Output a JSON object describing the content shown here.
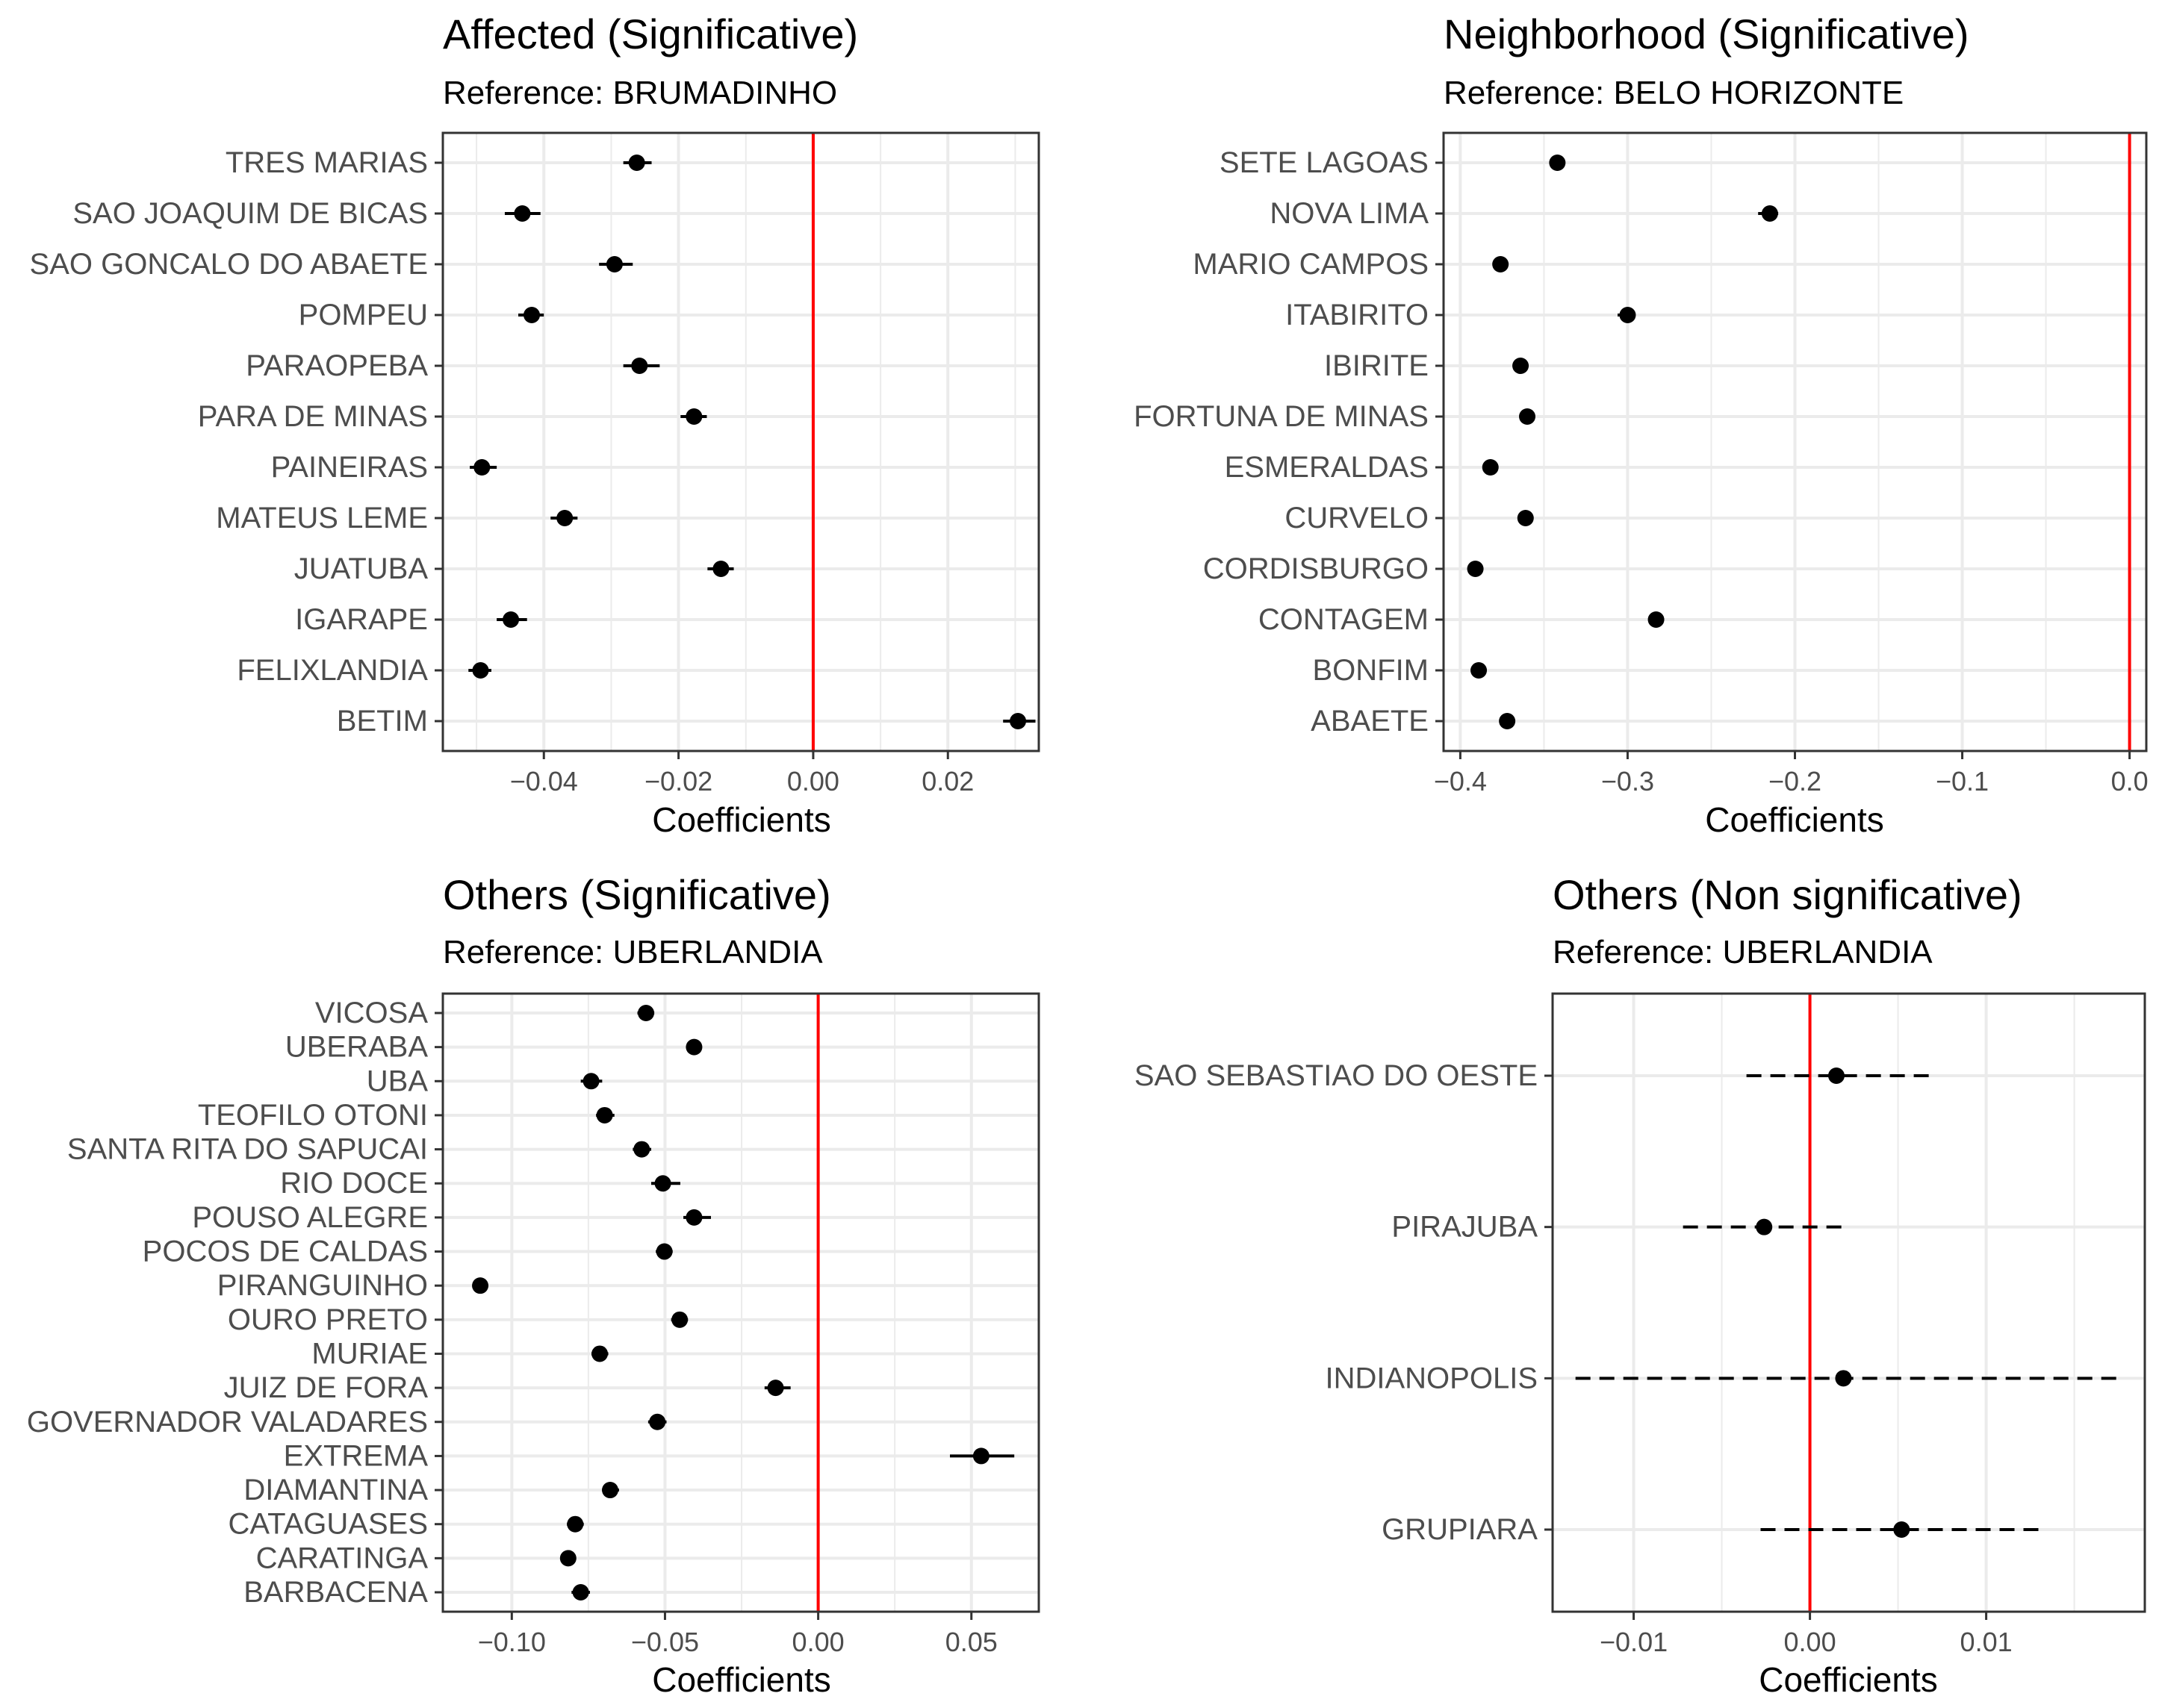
{
  "chart_data": [
    {
      "type": "dot-errorbar",
      "title": "Affected (Significative)",
      "subtitle": "Reference: BRUMADINHO",
      "xlabel": "Coefficients",
      "ylabel": "",
      "xlim": [
        -0.055,
        0.0335
      ],
      "xticks": [
        -0.04,
        -0.02,
        0.0,
        0.02
      ],
      "xtick_labels": [
        "−0.04",
        "−0.02",
        "0.00",
        "0.02"
      ],
      "reference_line": 0,
      "grid": true,
      "errorbar_style": "solid",
      "categories": [
        "TRES MARIAS",
        "SAO JOAQUIM DE BICAS",
        "SAO GONCALO DO ABAETE",
        "POMPEU",
        "PARAOPEBA",
        "PARA DE MINAS",
        "PAINEIRAS",
        "MATEUS LEME",
        "JUATUBA",
        "IGARAPE",
        "FELIXLANDIA",
        "BETIM"
      ],
      "values": [
        -0.0262,
        -0.0432,
        -0.0295,
        -0.0418,
        -0.0258,
        -0.0177,
        -0.0492,
        -0.0369,
        -0.0137,
        -0.0449,
        -0.0494,
        0.0304
      ],
      "lower": [
        -0.0282,
        -0.0458,
        -0.0318,
        -0.0438,
        -0.0282,
        -0.0197,
        -0.051,
        -0.039,
        -0.0157,
        -0.047,
        -0.0512,
        0.0282
      ],
      "upper": [
        -0.024,
        -0.0405,
        -0.0268,
        -0.04,
        -0.0228,
        -0.0158,
        -0.047,
        -0.035,
        -0.0118,
        -0.0425,
        -0.0478,
        0.033
      ]
    },
    {
      "type": "dot-errorbar",
      "title": "Neighborhood (Significative)",
      "subtitle": "Reference: BELO HORIZONTE",
      "xlabel": "Coefficients",
      "ylabel": "",
      "xlim": [
        -0.41,
        0.01
      ],
      "xticks": [
        -0.4,
        -0.3,
        -0.2,
        -0.1,
        0.0
      ],
      "xtick_labels": [
        "−0.4",
        "−0.3",
        "−0.2",
        "−0.1",
        "0.0"
      ],
      "reference_line": 0,
      "grid": true,
      "errorbar_style": "solid",
      "categories": [
        "SETE LAGOAS",
        "NOVA LIMA",
        "MARIO CAMPOS",
        "ITABIRITO",
        "IBIRITE",
        "FORTUNA DE MINAS",
        "ESMERALDAS",
        "CURVELO",
        "CORDISBURGO",
        "CONTAGEM",
        "BONFIM",
        "ABAETE"
      ],
      "values": [
        -0.342,
        -0.215,
        -0.376,
        -0.3,
        -0.364,
        -0.36,
        -0.382,
        -0.361,
        -0.391,
        -0.283,
        -0.389,
        -0.372
      ],
      "lower": [
        -0.346,
        -0.222,
        -0.38,
        -0.306,
        -0.368,
        -0.364,
        -0.386,
        -0.365,
        -0.395,
        -0.287,
        -0.393,
        -0.376
      ],
      "upper": [
        -0.338,
        -0.21,
        -0.372,
        -0.296,
        -0.36,
        -0.356,
        -0.378,
        -0.357,
        -0.387,
        -0.279,
        -0.385,
        -0.368
      ]
    },
    {
      "type": "dot-errorbar",
      "title": "Others (Significative)",
      "subtitle": "Reference: UBERLANDIA",
      "xlabel": "Coefficients",
      "ylabel": "",
      "xlim": [
        -0.1225,
        0.072
      ],
      "xticks": [
        -0.1,
        -0.05,
        0.0,
        0.05
      ],
      "xtick_labels": [
        "−0.10",
        "−0.05",
        "0.00",
        "0.05"
      ],
      "reference_line": 0,
      "grid": true,
      "errorbar_style": "solid",
      "categories": [
        "VICOSA",
        "UBERABA",
        "UBA",
        "TEOFILO OTONI",
        "SANTA RITA DO SAPUCAI",
        "RIO DOCE",
        "POUSO ALEGRE",
        "POCOS DE CALDAS",
        "PIRANGUINHO",
        "OURO PRETO",
        "MURIAE",
        "JUIZ DE FORA",
        "GOVERNADOR VALADARES",
        "EXTREMA",
        "DIAMANTINA",
        "CATAGUASES",
        "CARATINGA",
        "BARBACENA"
      ],
      "values": [
        -0.0562,
        -0.0405,
        -0.0741,
        -0.0697,
        -0.0576,
        -0.0507,
        -0.0405,
        -0.0502,
        -0.1103,
        -0.0452,
        -0.0713,
        -0.0139,
        -0.0525,
        0.0532,
        -0.0679,
        -0.0793,
        -0.0816,
        -0.0775
      ],
      "lower": [
        -0.059,
        -0.043,
        -0.0775,
        -0.0725,
        -0.0605,
        -0.0545,
        -0.044,
        -0.053,
        -0.1125,
        -0.048,
        -0.074,
        -0.0175,
        -0.0555,
        0.043,
        -0.0705,
        -0.082,
        -0.084,
        -0.0805
      ],
      "upper": [
        -0.0535,
        -0.038,
        -0.0705,
        -0.0665,
        -0.0545,
        -0.045,
        -0.035,
        -0.0475,
        -0.108,
        -0.0425,
        -0.0685,
        -0.009,
        -0.0495,
        0.064,
        -0.065,
        -0.0765,
        -0.079,
        -0.0745
      ]
    },
    {
      "type": "dot-errorbar",
      "title": "Others (Non significative)",
      "subtitle": "Reference: UBERLANDIA",
      "xlabel": "Coefficients",
      "ylabel": "",
      "xlim": [
        -0.0146,
        0.019
      ],
      "xticks": [
        -0.01,
        0.0,
        0.01
      ],
      "xtick_labels": [
        "−0.01",
        "0.00",
        "0.01"
      ],
      "reference_line": 0,
      "grid": true,
      "errorbar_style": "dashed",
      "categories": [
        "SAO SEBASTIAO DO OESTE",
        "PIRAJUBA",
        "INDIANOPOLIS",
        "GRUPIARA"
      ],
      "values": [
        0.0015,
        -0.0026,
        0.0019,
        0.0052
      ],
      "lower": [
        -0.0036,
        -0.0072,
        -0.0133,
        -0.0028
      ],
      "upper": [
        0.0068,
        0.0022,
        0.0178,
        0.0132
      ]
    }
  ],
  "colors": {
    "reference_line": "#ff0000",
    "points": "#000000",
    "panel_border": "#333333",
    "grid": "#ebebeb",
    "axis_text": "#4d4d4d"
  }
}
